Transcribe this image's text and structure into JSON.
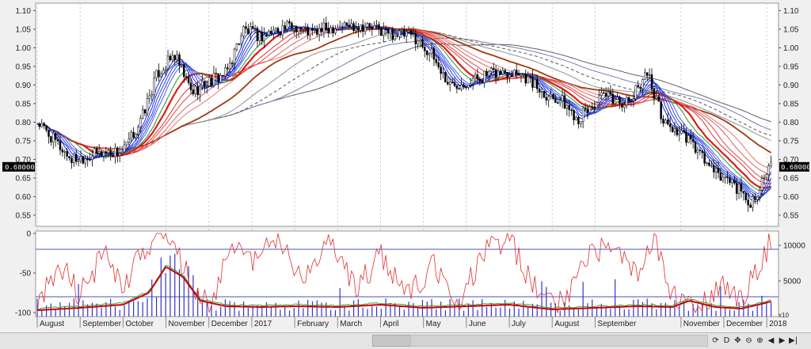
{
  "chart_data": [
    {
      "type": "candlestick",
      "title": "",
      "y_ticks": [
        "1.10",
        "1.05",
        "1.00",
        "0.95",
        "0.90",
        "0.85",
        "0.80",
        "0.75",
        "0.70",
        "0.65",
        "0.60",
        "0.55"
      ],
      "ylim": [
        0.52,
        1.12
      ],
      "last_price_label": "0.68000",
      "x_labels": [
        "August",
        "September",
        "October",
        "November",
        "December",
        "2017",
        "February",
        "March",
        "April",
        "May",
        "June",
        "July",
        "August",
        "September",
        "November",
        "December",
        "2018"
      ],
      "month_positions": [
        {
          "label": "August",
          "t": 0
        },
        {
          "label": "September",
          "t": 0.5
        },
        {
          "label": "October",
          "t": 1
        },
        {
          "label": "November",
          "t": 1.5
        },
        {
          "label": "December",
          "t": 2
        },
        {
          "label": "2017",
          "t": 2.5
        },
        {
          "label": "February",
          "t": 3
        },
        {
          "label": "March",
          "t": 3.5
        },
        {
          "label": "April",
          "t": 4
        },
        {
          "label": "May",
          "t": 4.5
        },
        {
          "label": "June",
          "t": 5
        },
        {
          "label": "July",
          "t": 5.5
        },
        {
          "label": "August",
          "t": 6
        },
        {
          "label": "September",
          "t": 6.5
        },
        {
          "label": "November",
          "t": 7.5
        },
        {
          "label": "December",
          "t": 8
        },
        {
          "label": "2018",
          "t": 8.5
        }
      ],
      "price_path": [
        [
          0,
          0.8
        ],
        [
          0.4,
          0.7
        ],
        [
          0.8,
          0.72
        ],
        [
          1.0,
          0.72
        ],
        [
          1.2,
          0.8
        ],
        [
          1.4,
          0.93
        ],
        [
          1.6,
          0.98
        ],
        [
          1.8,
          0.88
        ],
        [
          2.0,
          0.91
        ],
        [
          2.2,
          0.93
        ],
        [
          2.4,
          1.05
        ],
        [
          2.6,
          1.03
        ],
        [
          2.8,
          1.05
        ],
        [
          3.0,
          1.06
        ],
        [
          3.2,
          1.04
        ],
        [
          3.5,
          1.06
        ],
        [
          3.8,
          1.06
        ],
        [
          4.1,
          1.04
        ],
        [
          4.4,
          1.03
        ],
        [
          4.6,
          0.98
        ],
        [
          4.8,
          0.9
        ],
        [
          5.0,
          0.91
        ],
        [
          5.3,
          0.93
        ],
        [
          5.6,
          0.94
        ],
        [
          5.9,
          0.88
        ],
        [
          6.1,
          0.86
        ],
        [
          6.3,
          0.81
        ],
        [
          6.6,
          0.87
        ],
        [
          6.9,
          0.85
        ],
        [
          7.1,
          0.94
        ],
        [
          7.3,
          0.8
        ],
        [
          7.6,
          0.75
        ],
        [
          7.9,
          0.66
        ],
        [
          8.1,
          0.64
        ],
        [
          8.3,
          0.58
        ],
        [
          8.55,
          0.68
        ]
      ],
      "moving_averages": [
        {
          "color": "#1a2fd8",
          "lag": 0.05
        },
        {
          "color": "#1a2fd8",
          "lag": 0.08
        },
        {
          "color": "#2a3ee0",
          "lag": 0.11
        },
        {
          "color": "#3a4ee8",
          "lag": 0.14
        },
        {
          "color": "#4a5ef0",
          "lag": 0.17
        },
        {
          "color": "#1f9a2a",
          "lag": 0.22
        },
        {
          "color": "#e01a1a",
          "lag": 0.28
        },
        {
          "color": "#e03030",
          "lag": 0.34
        },
        {
          "color": "#e04848",
          "lag": 0.4
        },
        {
          "color": "#e06060",
          "lag": 0.47
        },
        {
          "color": "#e07878",
          "lag": 0.55
        },
        {
          "color": "#a03a10",
          "lag": 0.75
        },
        {
          "color": "#909090",
          "lag": 0.95
        },
        {
          "color": "#555555",
          "lag": 1.15
        },
        {
          "color": "#7a7ab0",
          "lag": 1.35
        },
        {
          "color": "#606060",
          "lag": 1.6
        }
      ]
    },
    {
      "type": "line",
      "title": "",
      "y_ticks_left": [
        "0",
        "-50",
        "-100"
      ],
      "ylim_left": [
        -105,
        3
      ],
      "y_ticks_right": [
        "10000",
        "5000"
      ],
      "unit_label": "x10",
      "osc_path": [
        [
          0,
          -90
        ],
        [
          0.3,
          -40
        ],
        [
          0.5,
          -80
        ],
        [
          0.8,
          -20
        ],
        [
          1.0,
          -70
        ],
        [
          1.3,
          -10
        ],
        [
          1.5,
          -5
        ],
        [
          1.8,
          -60
        ],
        [
          2.0,
          -90
        ],
        [
          2.3,
          -10
        ],
        [
          2.5,
          -40
        ],
        [
          2.8,
          -5
        ],
        [
          3.1,
          -60
        ],
        [
          3.4,
          -15
        ],
        [
          3.7,
          -70
        ],
        [
          4.0,
          -30
        ],
        [
          4.3,
          -80
        ],
        [
          4.6,
          -40
        ],
        [
          4.9,
          -90
        ],
        [
          5.2,
          -20
        ],
        [
          5.5,
          -10
        ],
        [
          5.8,
          -70
        ],
        [
          6.1,
          -90
        ],
        [
          6.4,
          -30
        ],
        [
          6.7,
          -10
        ],
        [
          7.0,
          -60
        ],
        [
          7.2,
          -5
        ],
        [
          7.4,
          -80
        ],
        [
          7.7,
          -95
        ],
        [
          8.0,
          -60
        ],
        [
          8.2,
          -90
        ],
        [
          8.4,
          -40
        ],
        [
          8.55,
          -10
        ]
      ],
      "signal_path": [
        [
          0,
          -97
        ],
        [
          0.5,
          -94
        ],
        [
          1.0,
          -90
        ],
        [
          1.3,
          -75
        ],
        [
          1.5,
          -42
        ],
        [
          1.7,
          -55
        ],
        [
          1.9,
          -85
        ],
        [
          2.2,
          -92
        ],
        [
          2.6,
          -93
        ],
        [
          3.0,
          -92
        ],
        [
          3.5,
          -93
        ],
        [
          4.0,
          -90
        ],
        [
          4.5,
          -94
        ],
        [
          5.0,
          -92
        ],
        [
          5.5,
          -90
        ],
        [
          6.0,
          -96
        ],
        [
          6.5,
          -94
        ],
        [
          7.0,
          -92
        ],
        [
          7.4,
          -93
        ],
        [
          7.6,
          -85
        ],
        [
          7.9,
          -93
        ],
        [
          8.2,
          -95
        ],
        [
          8.4,
          -90
        ],
        [
          8.55,
          -86
        ]
      ],
      "signal_color": "#cc0000",
      "osc_color": "#e03030",
      "volume_color": "#3333cc"
    }
  ]
}
